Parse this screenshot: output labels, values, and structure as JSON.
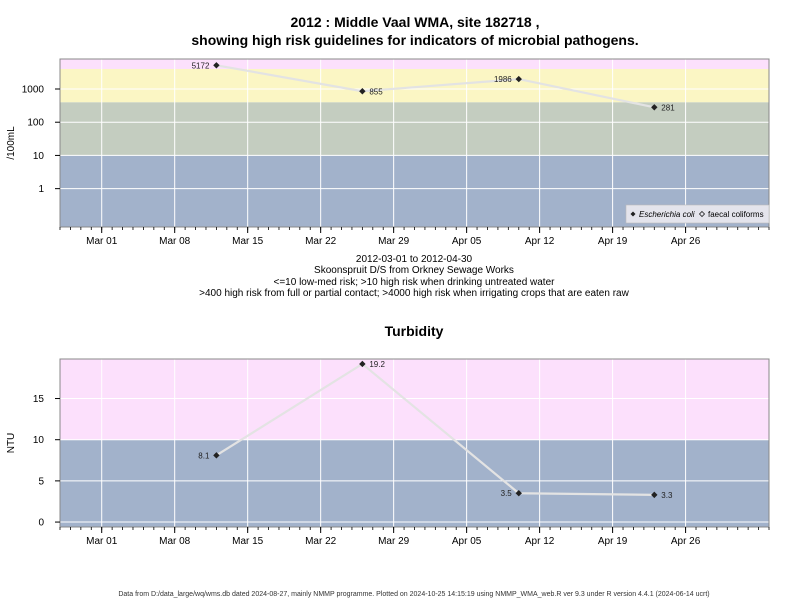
{
  "page": {
    "title_line1": "2012 : Middle Vaal WMA, site 182718 ,",
    "title_line2": "showing high risk guidelines for indicators of microbial pathogens.",
    "subtitle_lines": [
      "2012-03-01 to 2012-04-30",
      "Skoonspruit D/S from Orkney Sewage Works",
      "<=10 low-med risk; >10 high risk when drinking untreated water",
      ">400 high risk from full or partial contact; >4000 high risk when irrigating crops that are eaten raw"
    ],
    "footer": "Data from D:/data_large/wq/wms.db dated 2024-08-27, mainly NMMP programme. Plotted on 2024-10-25 14:15:19 using NMMP_WMA_web.R ver 9.3 under R version 4.4.1 (2024-06-14 ucrt)"
  },
  "colors": {
    "band_blue": "#a2b2cb",
    "band_olive": "#c4cdc0",
    "band_yellow": "#fbf6c4",
    "band_pink": "#fce0fc",
    "grid": "#ffffff",
    "line": "#e3e3e3",
    "marker": "#222222"
  },
  "chart_data": [
    {
      "type": "line",
      "title": "",
      "xlabel": "",
      "ylabel": "/100mL",
      "yscale": "log",
      "xlim": [
        "2012-02-26",
        "2012-05-04"
      ],
      "ylim": [
        0.07,
        8000
      ],
      "x_ticks": [
        "Mar 01",
        "Mar 08",
        "Mar 15",
        "Mar 22",
        "Mar 29",
        "Apr 05",
        "Apr 12",
        "Apr 19",
        "Apr 26"
      ],
      "x_tick_dates": [
        "2012-03-01",
        "2012-03-08",
        "2012-03-15",
        "2012-03-22",
        "2012-03-29",
        "2012-04-05",
        "2012-04-12",
        "2012-04-19",
        "2012-04-26"
      ],
      "y_ticks": [
        1,
        10,
        100,
        1000
      ],
      "y_tick_labels": [
        "1",
        "10",
        "100",
        "1000"
      ],
      "bands": [
        {
          "from": 0.07,
          "to": 10,
          "color": "#a2b2cb"
        },
        {
          "from": 10,
          "to": 400,
          "color": "#c4cdc0"
        },
        {
          "from": 400,
          "to": 4000,
          "color": "#fbf6c4"
        },
        {
          "from": 4000,
          "to": 8000,
          "color": "#fce0fc"
        }
      ],
      "series": [
        {
          "name": "Escherichia coli",
          "x": [
            "2012-03-12",
            "2012-03-26",
            "2012-04-10",
            "2012-04-23"
          ],
          "values": [
            5172,
            855,
            1986,
            281
          ],
          "labels": [
            "5172",
            "855",
            "1986",
            "281"
          ],
          "label_side": [
            "left",
            "right",
            "left",
            "right"
          ]
        }
      ],
      "legend": {
        "position": "bottom-right",
        "items": [
          "Escherichia coli",
          "faecal coliforms"
        ]
      },
      "grid": true
    },
    {
      "type": "line",
      "title": "Turbidity",
      "xlabel": "",
      "ylabel": "NTU",
      "yscale": "linear",
      "xlim": [
        "2012-02-26",
        "2012-05-04"
      ],
      "ylim": [
        -0.6,
        19.8
      ],
      "x_ticks": [
        "Mar 01",
        "Mar 08",
        "Mar 15",
        "Mar 22",
        "Mar 29",
        "Apr 05",
        "Apr 12",
        "Apr 19",
        "Apr 26"
      ],
      "x_tick_dates": [
        "2012-03-01",
        "2012-03-08",
        "2012-03-15",
        "2012-03-22",
        "2012-03-29",
        "2012-04-05",
        "2012-04-12",
        "2012-04-19",
        "2012-04-26"
      ],
      "y_ticks": [
        0,
        5,
        10,
        15
      ],
      "y_tick_labels": [
        "0",
        "5",
        "10",
        "15"
      ],
      "bands": [
        {
          "from": -0.6,
          "to": 10,
          "color": "#a2b2cb"
        },
        {
          "from": 10,
          "to": 19.8,
          "color": "#fce0fc"
        }
      ],
      "series": [
        {
          "x": [
            "2012-03-12",
            "2012-03-26",
            "2012-04-10",
            "2012-04-23"
          ],
          "values": [
            8.1,
            19.2,
            3.5,
            3.3
          ],
          "labels": [
            "8.1",
            "19.2",
            "3.5",
            "3.3"
          ],
          "label_side": [
            "left",
            "right",
            "left",
            "right"
          ]
        }
      ],
      "grid": true
    }
  ]
}
